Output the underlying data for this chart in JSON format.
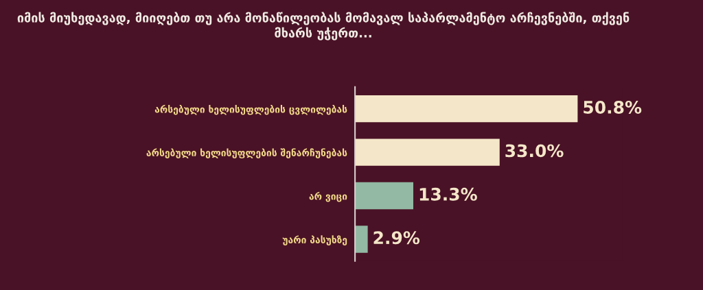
{
  "chart_data": {
    "type": "bar",
    "orientation": "horizontal",
    "title": "იმის მიუხედავად, მიიღებთ თუ არა მონაწილეობას მომავალ საპარლამენტო არჩევნებში, თქვენ მხარს უჭერთ...",
    "categories": [
      "არსებული ხელისუფლების ცვლილებას",
      "არსებული ხელისუფლების შენარჩუნებას",
      "არ ვიცი",
      "უარი პასუხზე"
    ],
    "values": [
      50.8,
      33.0,
      13.3,
      2.9
    ],
    "colors": [
      "#f4e7c9",
      "#f4e7c9",
      "#93b8a3",
      "#93b8a3"
    ],
    "value_labels": [
      "50.8%",
      "33.0%",
      "13.3%",
      "2.9%"
    ],
    "grid": false,
    "legend": false
  }
}
